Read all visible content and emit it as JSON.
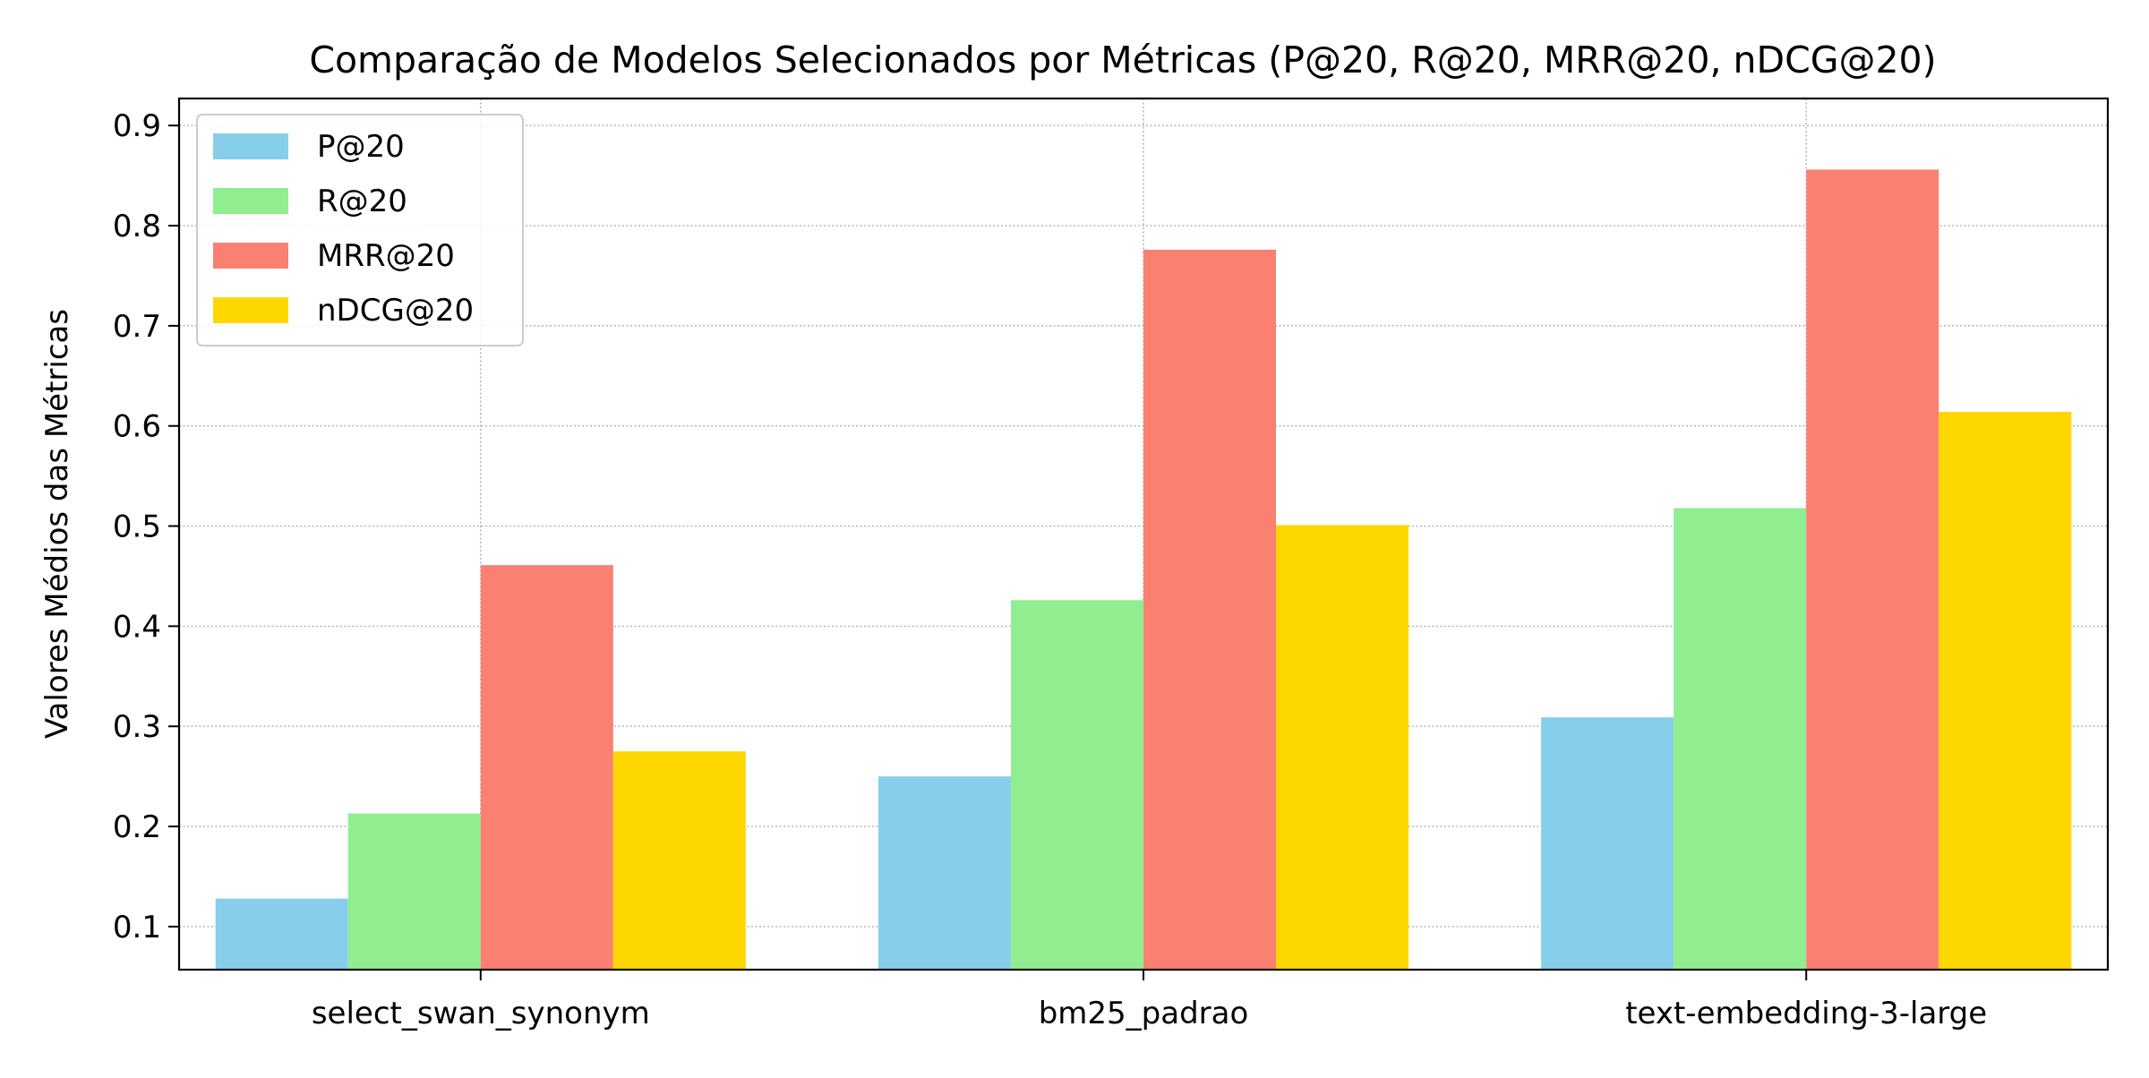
{
  "chart_data": {
    "type": "bar",
    "title": "Comparação de Modelos Selecionados por Métricas (P@20, R@20, MRR@20, nDCG@20)",
    "xlabel": "",
    "ylabel": "Valores Médios das Métricas",
    "categories": [
      "select_swan_synonym",
      "bm25_padrao",
      "text-embedding-3-large"
    ],
    "series": [
      {
        "name": "P@20",
        "color": "#87CEEB",
        "values": [
          0.128,
          0.25,
          0.309
        ]
      },
      {
        "name": "R@20",
        "color": "#90EE90",
        "values": [
          0.213,
          0.426,
          0.518
        ]
      },
      {
        "name": "MRR@20",
        "color": "#FA8072",
        "values": [
          0.461,
          0.776,
          0.856
        ]
      },
      {
        "name": "nDCG@20",
        "color": "#FFD700",
        "values": [
          0.275,
          0.501,
          0.614
        ]
      }
    ],
    "ylim": [
      0.057,
      0.927
    ],
    "yticks": [
      "0.1",
      "0.2",
      "0.3",
      "0.4",
      "0.5",
      "0.6",
      "0.7",
      "0.8",
      "0.9"
    ],
    "grid": true,
    "legend_position": "top-left"
  }
}
